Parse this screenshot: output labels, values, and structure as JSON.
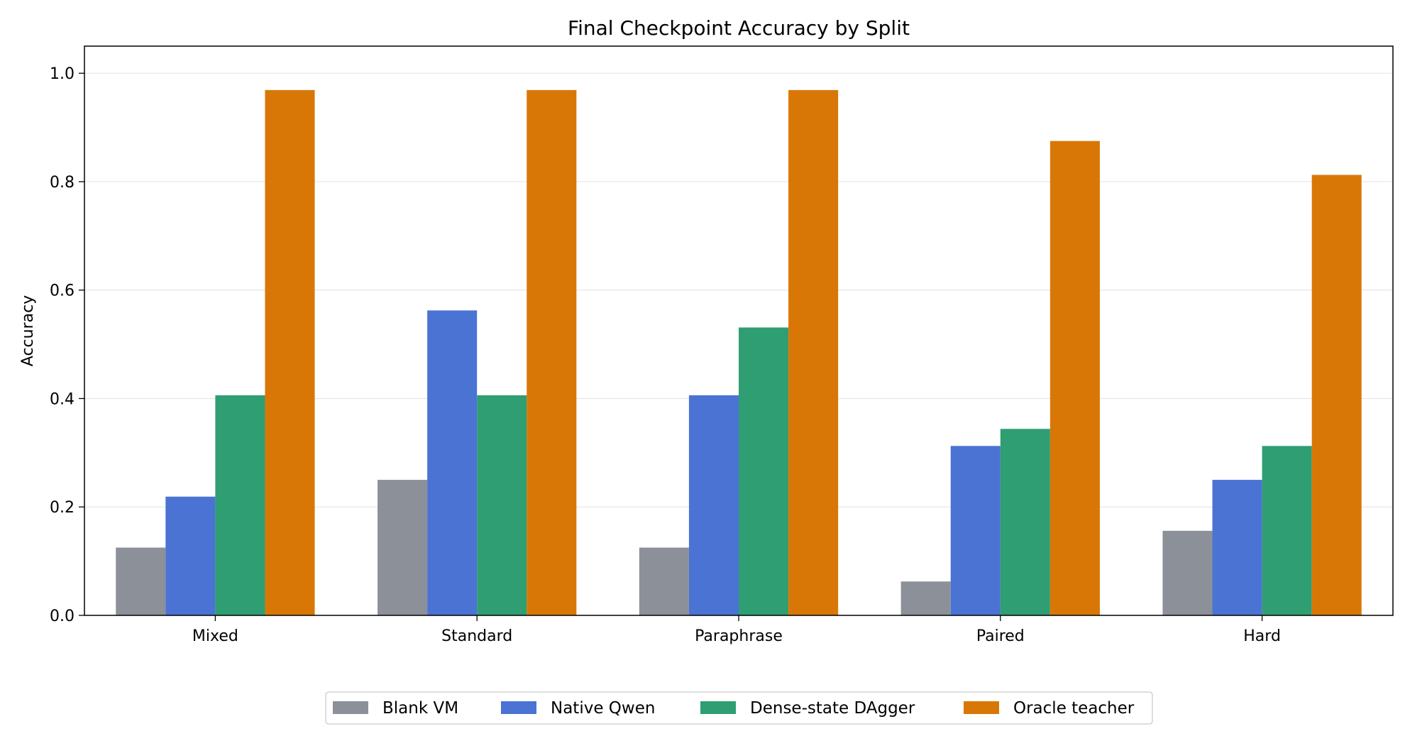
{
  "chart_data": {
    "type": "bar",
    "title": "Final Checkpoint Accuracy by Split",
    "xlabel": "",
    "ylabel": "Accuracy",
    "ylim": [
      0,
      1.05
    ],
    "yticks": [
      0.0,
      0.2,
      0.4,
      0.6,
      0.8,
      1.0
    ],
    "ytick_labels": [
      "0.0",
      "0.2",
      "0.4",
      "0.6",
      "0.8",
      "1.0"
    ],
    "categories": [
      "Mixed",
      "Standard",
      "Paraphrase",
      "Paired",
      "Hard"
    ],
    "grid": "horizontal",
    "legend_position": "bottom-center",
    "series": [
      {
        "name": "Blank VM",
        "color": "#8c9099",
        "values": [
          0.125,
          0.25,
          0.125,
          0.0625,
          0.156
        ]
      },
      {
        "name": "Native Qwen",
        "color": "#4a73d3",
        "values": [
          0.219,
          0.5625,
          0.406,
          0.3125,
          0.25
        ]
      },
      {
        "name": "Dense-state DAgger",
        "color": "#2f9e72",
        "values": [
          0.406,
          0.406,
          0.531,
          0.344,
          0.3125
        ]
      },
      {
        "name": "Oracle teacher",
        "color": "#d97706",
        "values": [
          0.969,
          0.969,
          0.969,
          0.875,
          0.8125
        ]
      }
    ]
  }
}
